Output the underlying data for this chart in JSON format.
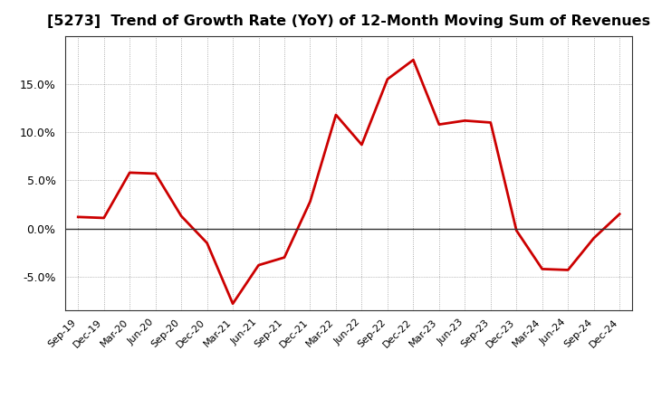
{
  "title": "[5273]  Trend of Growth Rate (YoY) of 12-Month Moving Sum of Revenues",
  "x_labels": [
    "Sep-19",
    "Dec-19",
    "Mar-20",
    "Jun-20",
    "Sep-20",
    "Dec-20",
    "Mar-21",
    "Jun-21",
    "Sep-21",
    "Dec-21",
    "Mar-22",
    "Jun-22",
    "Sep-22",
    "Dec-22",
    "Mar-23",
    "Jun-23",
    "Sep-23",
    "Dec-23",
    "Mar-24",
    "Jun-24",
    "Sep-24",
    "Dec-24"
  ],
  "y_values": [
    1.2,
    1.1,
    5.8,
    5.7,
    1.3,
    -1.5,
    -7.8,
    -3.8,
    -3.0,
    2.8,
    11.8,
    8.7,
    15.5,
    17.5,
    10.8,
    11.2,
    11.0,
    -0.2,
    -4.2,
    -4.3,
    -1.0,
    1.5
  ],
  "line_color": "#cc0000",
  "line_width": 2.0,
  "ylim": [
    -8.5,
    20.0
  ],
  "yticks": [
    -5.0,
    0.0,
    5.0,
    10.0,
    15.0
  ],
  "ytick_labels": [
    "-5.0%",
    "0.0%",
    "5.0%",
    "10.0%",
    "15.0%"
  ],
  "background_color": "#ffffff",
  "grid_color": "#999999",
  "title_fontsize": 11.5,
  "zero_line_color": "#333333",
  "spine_color": "#333333"
}
